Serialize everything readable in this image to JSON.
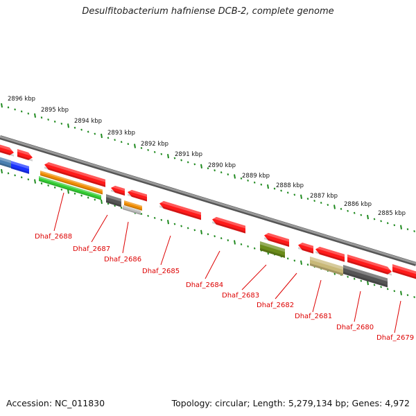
{
  "title": "Desulfitobacterium hafniense DCB-2, complete genome",
  "accession": "Accession: NC_011830",
  "summary": "Topology: circular; Length: 5,279,134 bp; Genes: 4,972",
  "scale_labels": [
    "2896 kbp",
    "2895 kbp",
    "2894 kbp",
    "2893 kbp",
    "2892 kbp",
    "2891 kbp",
    "2890 kbp",
    "2889 kbp",
    "2888 kbp",
    "2887 kbp",
    "2886 kbp",
    "2885 kbp"
  ],
  "gene_labels": [
    "Dhaf_2688",
    "Dhaf_2687",
    "Dhaf_2686",
    "Dhaf_2685",
    "Dhaf_2684",
    "Dhaf_2683",
    "Dhaf_2682",
    "Dhaf_2681",
    "Dhaf_2680",
    "Dhaf_2679"
  ],
  "colors": {
    "backbone": "#8a8a8a",
    "tick": "#1f8a1f",
    "label": "#dd0000",
    "gene_red": "#ff1a1a",
    "gene_blue": "#1a33ff",
    "gene_steel": "#4a7fb0",
    "gene_orange": "#f08c00",
    "gene_green": "#33cc33",
    "gene_gray": "#555555",
    "gene_lightgray": "#bbbbbb",
    "gene_olive": "#6b8c1a",
    "gene_khaki": "#c8b878"
  }
}
